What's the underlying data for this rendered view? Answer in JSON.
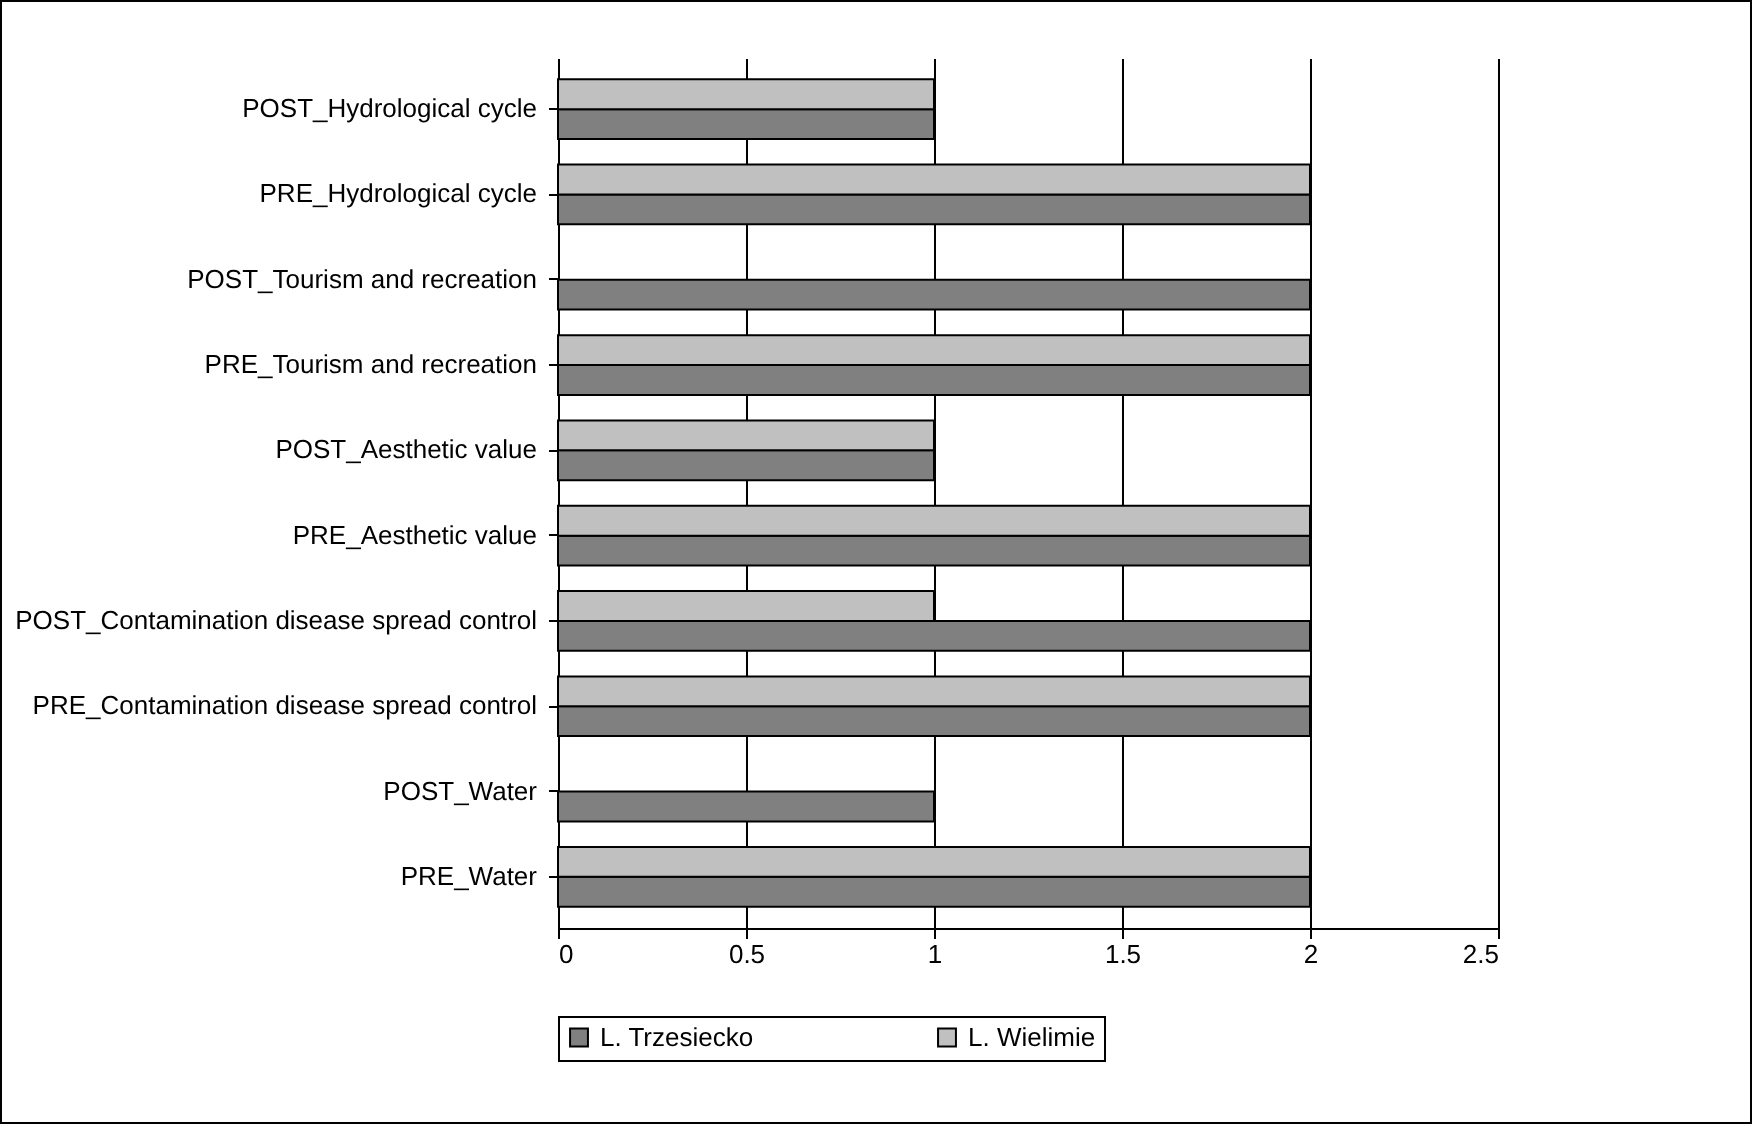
{
  "chart_data": {
    "type": "bar",
    "orientation": "horizontal",
    "categories": [
      "POST_Hydrological cycle",
      "PRE_Hydrological cycle",
      "POST_Tourism and recreation",
      "PRE_Tourism and recreation",
      "POST_Aesthetic value",
      "PRE_Aesthetic value",
      "POST_Contamination disease spread control",
      "PRE_Contamination disease spread control",
      "POST_Water",
      "PRE_Water"
    ],
    "series": [
      {
        "name": "L. Trzesiecko",
        "color": "#808080",
        "values": [
          1,
          2,
          2,
          2,
          1,
          2,
          2,
          2,
          1,
          2
        ]
      },
      {
        "name": "L. Wielimie",
        "color": "#c0c0c0",
        "values": [
          1,
          2,
          null,
          2,
          1,
          2,
          1,
          2,
          null,
          2
        ]
      }
    ],
    "xlim": [
      0,
      2.5
    ],
    "xticks": [
      0,
      0.5,
      1,
      1.5,
      2,
      2.5
    ],
    "grid": "x",
    "legend": "bottom"
  }
}
